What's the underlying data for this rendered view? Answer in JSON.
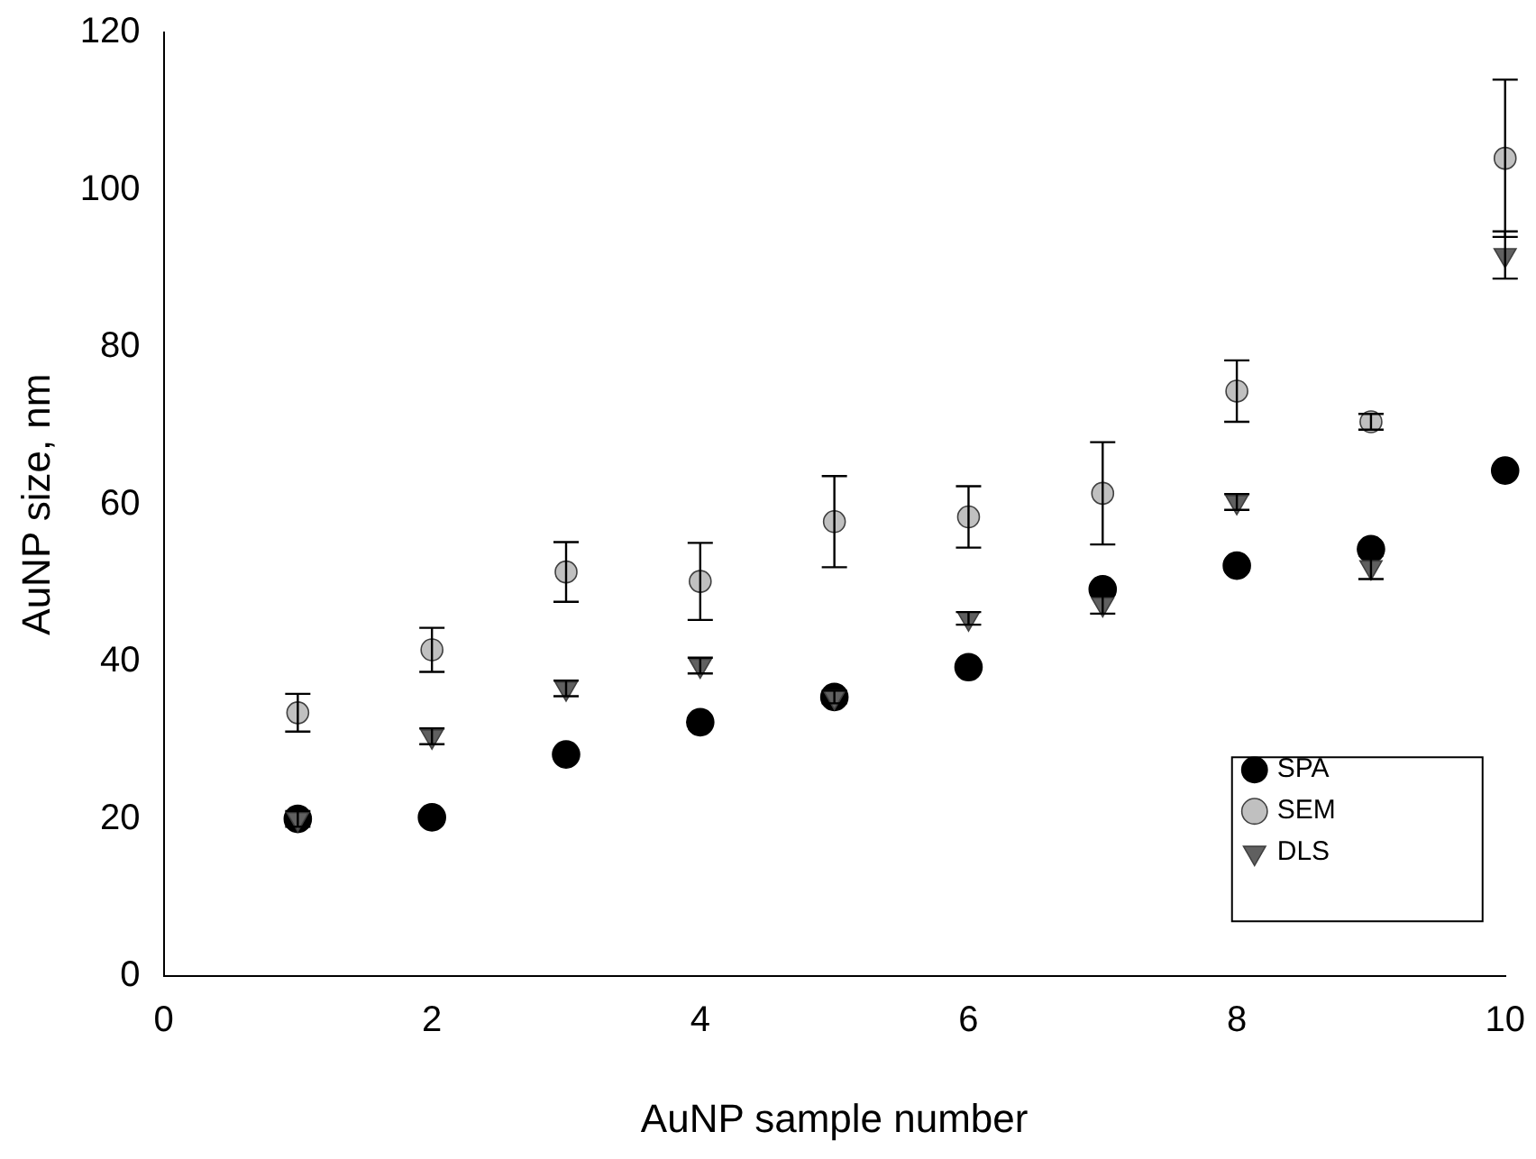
{
  "chart_data": {
    "type": "scatter",
    "xlabel": "AuNP sample number",
    "ylabel": "AuNP size, nm",
    "x": [
      1,
      2,
      3,
      4,
      5,
      6,
      7,
      8,
      9,
      10
    ],
    "xlim": [
      0,
      10
    ],
    "xticks": [
      0,
      2,
      4,
      6,
      8,
      10
    ],
    "ylim": [
      0,
      120
    ],
    "yticks": [
      0,
      20,
      40,
      60,
      80,
      100,
      120
    ],
    "grid": false,
    "legend": "bottom right",
    "series": [
      {
        "name": "SPA",
        "color": "#000000",
        "marker": "circle",
        "values": [
          20,
          20.2,
          28.2,
          32.3,
          35.5,
          39.3,
          49.2,
          52.2,
          54.3,
          64.3
        ]
      },
      {
        "name": "SEM",
        "color": "#c0c0c0",
        "marker": "circle",
        "values": [
          33.5,
          41.5,
          51.4,
          50.2,
          57.8,
          58.4,
          61.4,
          74.4,
          70.5,
          104
        ],
        "errors": [
          2.4,
          2.8,
          3.8,
          4.9,
          5.8,
          3.9,
          6.5,
          3.9,
          1,
          10
        ]
      },
      {
        "name": "DLS",
        "color": "#606060",
        "marker": "triangle",
        "values": [
          20,
          30.5,
          36.6,
          39.5,
          35.5,
          45.5,
          47.3,
          60.3,
          52,
          91.7
        ],
        "errors": [
          1,
          1,
          1,
          1,
          0.8,
          0.8,
          1.2,
          1,
          1.5,
          3
        ]
      }
    ]
  }
}
